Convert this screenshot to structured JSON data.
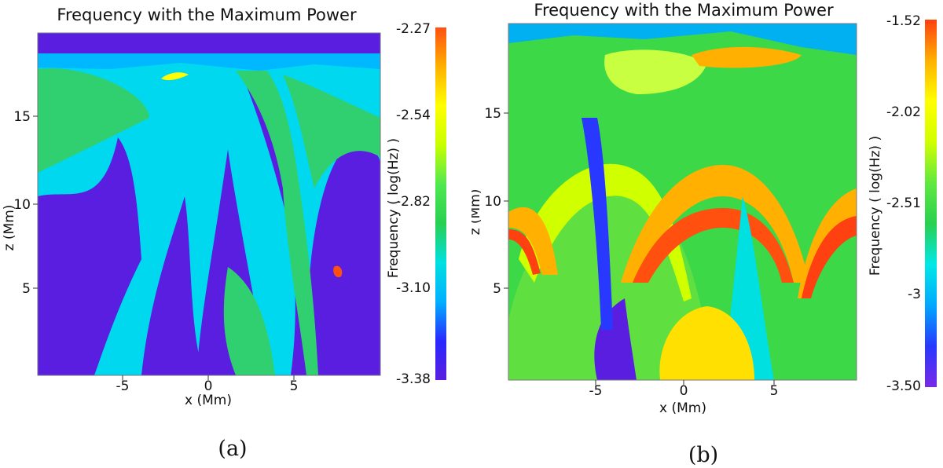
{
  "chart_data": [
    {
      "type": "heatmap",
      "panel_label": "(a)",
      "title": "Frequency with the Maximum Power",
      "xlabel": "x (Mm)",
      "ylabel": "z (Mm)",
      "xlim": [
        -10,
        10
      ],
      "ylim": [
        0,
        19.5
      ],
      "xticks": [
        -5,
        0,
        5
      ],
      "yticks": [
        5,
        10,
        15
      ],
      "colorbar": {
        "label": "Frequency ( log(Hz) )",
        "range": [
          -3.38,
          -2.27
        ],
        "ticks": [
          -2.27,
          -2.54,
          -2.82,
          -3.1,
          -3.38
        ],
        "colors": [
          "#5a1ee0",
          "#2828ff",
          "#00b0ff",
          "#00e0e0",
          "#28d050",
          "#50e850",
          "#c8ff00",
          "#ffff00",
          "#ffb000",
          "#ff5010"
        ]
      },
      "dominant_levels": [
        -3.38,
        -3.05,
        -2.95,
        -2.85
      ]
    },
    {
      "type": "heatmap",
      "panel_label": "(b)",
      "title": "Frequency with the Maximum Power",
      "xlabel": "x (Mm)",
      "ylabel": "z (Mm)",
      "xlim": [
        -10,
        10
      ],
      "ylim": [
        0,
        19.5
      ],
      "xticks": [
        -5,
        0,
        5
      ],
      "yticks": [
        5,
        10,
        15
      ],
      "colorbar": {
        "label": "Frequency ( log(Hz) )",
        "range": [
          -3.5,
          -1.52
        ],
        "ticks": [
          -1.52,
          -2.02,
          -2.51,
          -3.0,
          -3.5
        ],
        "colors": [
          "#7a28e8",
          "#2838ff",
          "#00a8ff",
          "#00e8e8",
          "#28d050",
          "#60e840",
          "#d0ff00",
          "#ffff00",
          "#ffb000",
          "#ff4010"
        ]
      },
      "dominant_levels": [
        -2.6,
        -2.4,
        -2.2,
        -2.0,
        -1.8
      ]
    }
  ]
}
